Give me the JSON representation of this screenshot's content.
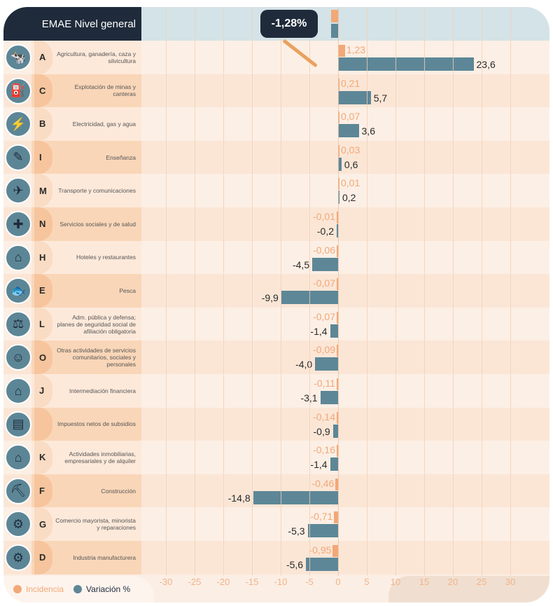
{
  "header": {
    "title": "EMAE Nivel general",
    "total": "-1,28%"
  },
  "legend": {
    "incidence": "Incidencia",
    "variation": "Variación %"
  },
  "colors": {
    "incidence": "#f2a877",
    "variation": "#5d8797",
    "header": "#1f2b3b"
  },
  "chart_data": {
    "type": "bar",
    "orientation": "horizontal",
    "xlim": [
      -30,
      30
    ],
    "ticks": [
      "-30",
      "-25",
      "-20",
      "-15",
      "-10",
      "-5",
      "0",
      "5",
      "10",
      "15",
      "20",
      "25",
      "30"
    ],
    "total": {
      "incidence": -1.28,
      "variation": -1.28
    },
    "categories": [
      {
        "letter": "A",
        "label": "Agricultura, ganadería, caza y silvicultura",
        "incidence": 1.23,
        "incidence_label": "1,23",
        "variation": 23.6,
        "variation_label": "23,6"
      },
      {
        "letter": "C",
        "label": "Explotación de minas y canteras",
        "incidence": 0.21,
        "incidence_label": "0,21",
        "variation": 5.7,
        "variation_label": "5,7"
      },
      {
        "letter": "B",
        "label": "Electricidad, gas y agua",
        "incidence": 0.07,
        "incidence_label": "0,07",
        "variation": 3.6,
        "variation_label": "3,6"
      },
      {
        "letter": "I",
        "label": "Enseñanza",
        "incidence": 0.03,
        "incidence_label": "0,03",
        "variation": 0.6,
        "variation_label": "0,6"
      },
      {
        "letter": "M",
        "label": "Transporte y comunicaciones",
        "incidence": 0.01,
        "incidence_label": "0,01",
        "variation": 0.2,
        "variation_label": "0,2"
      },
      {
        "letter": "N",
        "label": "Servicios sociales y de salud",
        "incidence": -0.01,
        "incidence_label": "-0,01",
        "variation": -0.2,
        "variation_label": "-0,2"
      },
      {
        "letter": "H",
        "label": "Hoteles y restaurantes",
        "incidence": -0.06,
        "incidence_label": "-0,06",
        "variation": -4.5,
        "variation_label": "-4,5"
      },
      {
        "letter": "E",
        "label": "Pesca",
        "incidence": -0.07,
        "incidence_label": "-0,07",
        "variation": -9.9,
        "variation_label": "-9,9"
      },
      {
        "letter": "L",
        "label": "Adm. pública y defensa; planes de seguridad social de afiliación obligatoria",
        "incidence": -0.07,
        "incidence_label": "-0,07",
        "variation": -1.4,
        "variation_label": "-1,4"
      },
      {
        "letter": "O",
        "label": "Otras actividades de servicios comunitarios, sociales y personales",
        "incidence": -0.09,
        "incidence_label": "-0,09",
        "variation": -4.0,
        "variation_label": "-4,0"
      },
      {
        "letter": "J",
        "label": "Intermediación financiera",
        "incidence": -0.11,
        "incidence_label": "-0,11",
        "variation": -3.1,
        "variation_label": "-3,1"
      },
      {
        "letter": "",
        "label": "Impuestos netos de subsidios",
        "incidence": -0.14,
        "incidence_label": "-0,14",
        "variation": -0.9,
        "variation_label": "-0,9"
      },
      {
        "letter": "K",
        "label": "Actividades inmobiliarias, empresariales y de alquiler",
        "incidence": -0.16,
        "incidence_label": "-0,16",
        "variation": -1.4,
        "variation_label": "-1,4"
      },
      {
        "letter": "F",
        "label": "Construcción",
        "incidence": -0.46,
        "incidence_label": "-0,46",
        "variation": -14.8,
        "variation_label": "-14,8"
      },
      {
        "letter": "G",
        "label": "Comercio mayorista, minorista y reparaciones",
        "incidence": -0.71,
        "incidence_label": "-0,71",
        "variation": -5.3,
        "variation_label": "-5,3"
      },
      {
        "letter": "D",
        "label": "Industria manufacturera",
        "incidence": -0.95,
        "incidence_label": "-0,95",
        "variation": -5.6,
        "variation_label": "-5,6"
      }
    ]
  }
}
